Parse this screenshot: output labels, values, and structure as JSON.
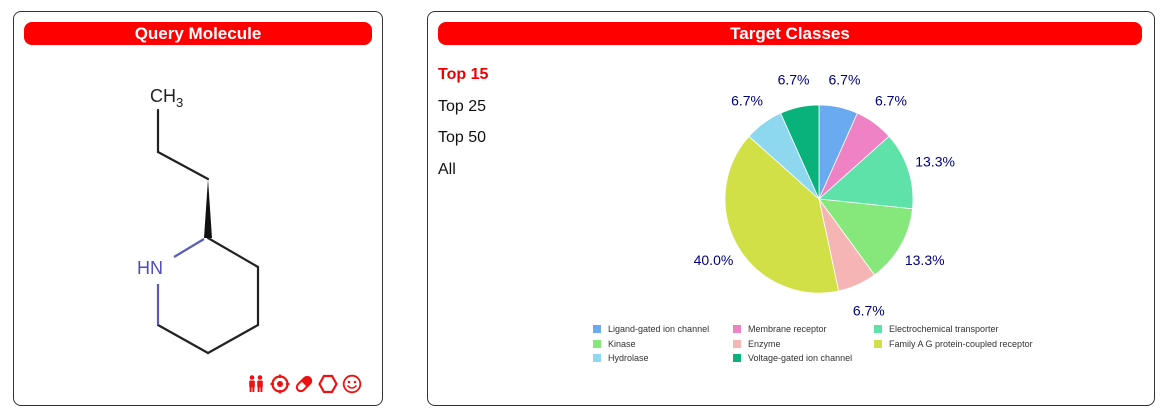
{
  "left_panel": {
    "title": "Query Molecule",
    "atom_labels": {
      "methyl": "CH",
      "methyl_sub": "3",
      "nh": "HN"
    },
    "toolbar_icons": [
      "people-icon",
      "target-icon",
      "pill-icon",
      "hexagon-icon",
      "smiley-icon"
    ]
  },
  "right_panel": {
    "title": "Target Classes",
    "top_options": [
      {
        "label": "Top 15",
        "active": true
      },
      {
        "label": "Top 25",
        "active": false
      },
      {
        "label": "Top 50",
        "active": false
      },
      {
        "label": "All",
        "active": false
      }
    ],
    "colors": {
      "header": "#ff0000",
      "active_option": "#ee0000",
      "pct_label": "#000080"
    }
  },
  "chart_data": {
    "type": "pie",
    "title": "",
    "slices": [
      {
        "name": "Ligand-gated ion channel",
        "value": 6.7,
        "label": "6.7%",
        "color": "#6aaaf0"
      },
      {
        "name": "Membrane receptor",
        "value": 6.7,
        "label": "6.7%",
        "color": "#ee82c4"
      },
      {
        "name": "Electrochemical transporter",
        "value": 13.3,
        "label": "13.3%",
        "color": "#5ee2aa"
      },
      {
        "name": "Kinase",
        "value": 13.3,
        "label": "13.3%",
        "color": "#86e87a"
      },
      {
        "name": "Enzyme",
        "value": 6.7,
        "label": "6.7%",
        "color": "#f5b5b5"
      },
      {
        "name": "Family A G protein-coupled receptor",
        "value": 40.0,
        "label": "40.0%",
        "color": "#d2e048"
      },
      {
        "name": "Hydrolase",
        "value": 6.7,
        "label": "6.7%",
        "color": "#8ed8ef"
      },
      {
        "name": "Voltage-gated ion channel",
        "value": 6.7,
        "label": "6.7%",
        "color": "#08b27a"
      }
    ],
    "legend": [
      "Ligand-gated ion channel",
      "Membrane receptor",
      "Electrochemical transporter",
      "Kinase",
      "Enzyme",
      "Family A G protein-coupled receptor",
      "Hydrolase",
      "Voltage-gated ion channel"
    ],
    "legend_placement": "bottom"
  }
}
